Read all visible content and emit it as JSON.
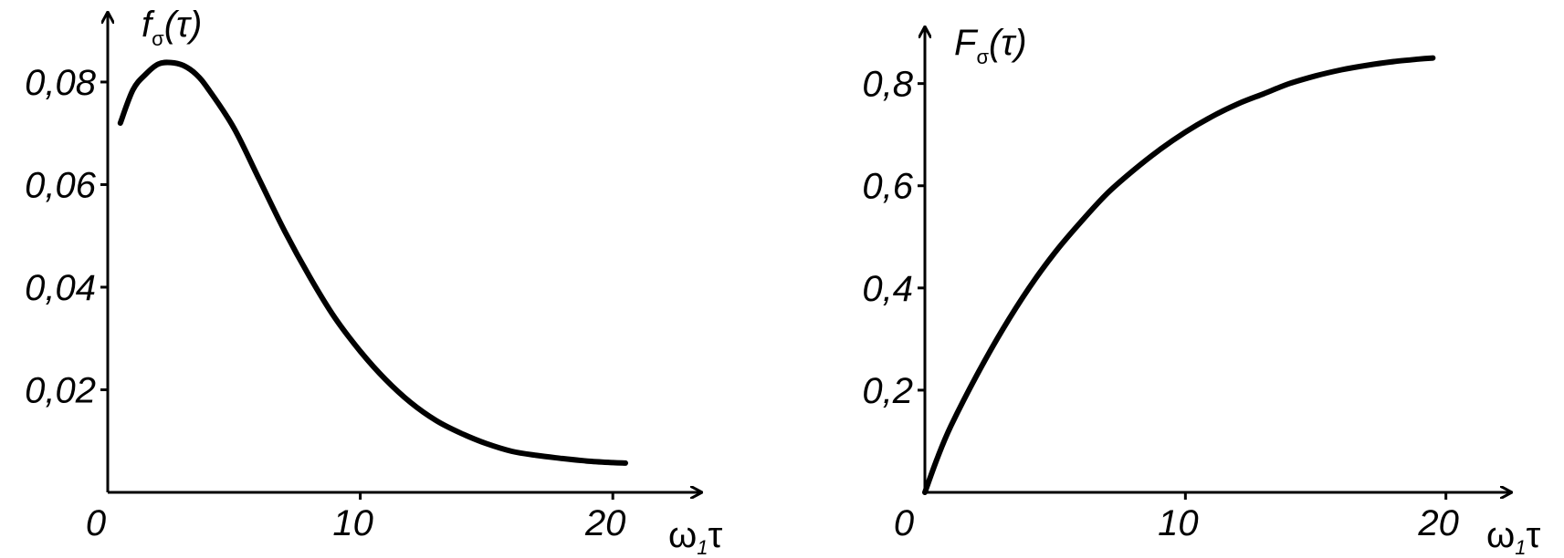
{
  "chart_data": [
    {
      "type": "line",
      "ylabel": {
        "main": "f",
        "sub": "σ",
        "arg": "(τ)"
      },
      "xlabel": {
        "main": "ω",
        "sub": "1",
        "arg": "τ"
      },
      "x_origin_label": "0",
      "x_tick_labels": [
        "10",
        "20"
      ],
      "x_ticks": [
        10,
        20
      ],
      "y_tick_labels": [
        "0,02",
        "0,04",
        "0,06",
        "0,08"
      ],
      "y_ticks": [
        0.02,
        0.04,
        0.06,
        0.08
      ],
      "xlim": [
        0,
        23.5
      ],
      "ylim": [
        0,
        0.0935
      ],
      "series": [
        {
          "x": [
            0.5,
            1,
            1.5,
            2,
            2.5,
            3,
            3.5,
            4,
            5,
            6,
            7,
            8,
            9,
            10,
            11,
            12,
            13,
            14,
            15,
            16,
            17,
            18,
            19,
            20,
            20.5
          ],
          "y": [
            0.072,
            0.0785,
            0.0815,
            0.0835,
            0.0838,
            0.0832,
            0.0815,
            0.0785,
            0.071,
            0.061,
            0.051,
            0.042,
            0.034,
            0.0275,
            0.022,
            0.0175,
            0.014,
            0.0115,
            0.0095,
            0.008,
            0.0072,
            0.0066,
            0.0061,
            0.0058,
            0.0057
          ]
        }
      ]
    },
    {
      "type": "line",
      "ylabel": {
        "main": "F",
        "sub": "σ",
        "arg": "(τ)"
      },
      "xlabel": {
        "main": "ω",
        "sub": "1",
        "arg": "τ"
      },
      "x_origin_label": "0",
      "x_tick_labels": [
        "10",
        "20"
      ],
      "x_ticks": [
        10,
        20
      ],
      "y_tick_labels": [
        "0,2",
        "0,4",
        "0,6",
        "0,8"
      ],
      "y_ticks": [
        0.2,
        0.4,
        0.6,
        0.8
      ],
      "xlim": [
        0,
        22.5
      ],
      "ylim": [
        0,
        0.91
      ],
      "series": [
        {
          "x": [
            0,
            0.5,
            1,
            2,
            3,
            4,
            5,
            6,
            7,
            8,
            9,
            10,
            11,
            12,
            13,
            14,
            15,
            16,
            17,
            18,
            19,
            19.5
          ],
          "y": [
            0.0,
            0.07,
            0.13,
            0.23,
            0.32,
            0.4,
            0.47,
            0.53,
            0.585,
            0.63,
            0.67,
            0.705,
            0.735,
            0.76,
            0.78,
            0.8,
            0.815,
            0.827,
            0.836,
            0.843,
            0.848,
            0.85
          ]
        }
      ]
    }
  ]
}
